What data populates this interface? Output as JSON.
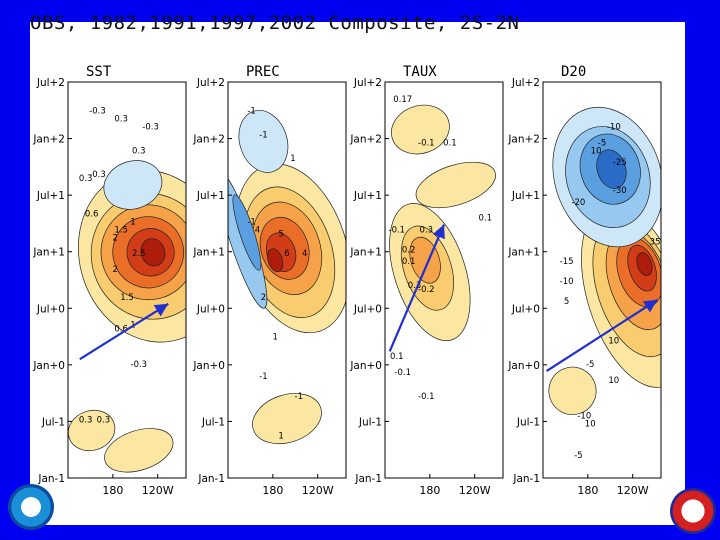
{
  "title": "OBS, 1982,1991,1997,2002 Composite, 2S-2N",
  "chart_data": {
    "type": "heatmap",
    "title": "OBS, 1982,1991,1997,2002 Composite, 2S-2N",
    "y_tick_labels": [
      "Jul+2",
      "Jan+2",
      "Jul+1",
      "Jan+1",
      "Jul+0",
      "Jan+0",
      "Jul-1",
      "Jan-1"
    ],
    "x_tick_labels": [
      "180",
      "120W"
    ],
    "panels": [
      {
        "name": "SST",
        "contour_labels": [
          "-0.3",
          "0.3",
          "0.3",
          "-0.3",
          "0.3",
          "0.6",
          "1",
          "1.5",
          "2",
          "2.5",
          "2",
          "1.5",
          "1",
          "0.6",
          "-0.3",
          "0.3",
          "0.3",
          "-0.3"
        ]
      },
      {
        "name": "PREC",
        "contour_labels": [
          "-1",
          "-1",
          "1",
          "-1",
          "4",
          "5",
          "6",
          "4",
          "2",
          "1",
          "-1",
          "-1",
          "1"
        ]
      },
      {
        "name": "TAUX",
        "contour_labels": [
          "0.17",
          "-0.1",
          "0.1",
          "-0.1",
          "0.1",
          "0.3",
          "0.2",
          "0.1",
          "0.3",
          "-0.2",
          "0.1",
          "-0.1",
          "-0.1"
        ]
      },
      {
        "name": "D20",
        "contour_labels": [
          "-10",
          "-5",
          "10",
          "-25",
          "-30",
          "-20",
          "-15",
          "35",
          "-10",
          "5",
          "10",
          "-5",
          "10",
          "-10",
          "10",
          "-5"
        ]
      }
    ]
  },
  "colors": {
    "background": "#0000f0",
    "warm": [
      "#fbe6a2",
      "#f9cc70",
      "#f5a248",
      "#ea6e28",
      "#d23c16",
      "#ae1c0c"
    ],
    "cool": [
      "#cde6f8",
      "#96c8f0",
      "#5aa0e0",
      "#2a6cc8"
    ],
    "arrow": "#2030d0"
  },
  "logos": [
    "noaa-logo",
    "nws-logo"
  ]
}
